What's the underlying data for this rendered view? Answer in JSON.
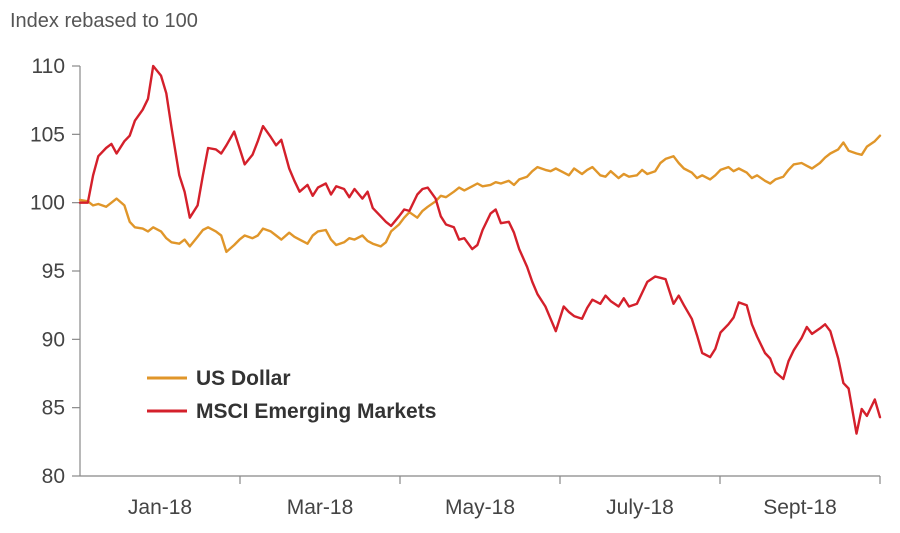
{
  "chart_data": {
    "type": "line",
    "title": "",
    "ylabel": "Index rebased to 100",
    "xlabel": "",
    "ylim": [
      80,
      110
    ],
    "yticks": [
      80,
      85,
      90,
      95,
      100,
      105,
      110
    ],
    "xticks": [
      "Jan-18",
      "Mar-18",
      "May-18",
      "July-18",
      "Sept-18"
    ],
    "x_range": [
      "2017-12-29",
      "2018-10-31"
    ],
    "grid": false,
    "legend_position": "bottom-left",
    "series": [
      {
        "name": "US Dollar",
        "color": "#E0962A",
        "points": [
          [
            "2017-12-29",
            100.2
          ],
          [
            "2018-01-01",
            100.1
          ],
          [
            "2018-01-03",
            99.8
          ],
          [
            "2018-01-05",
            99.9
          ],
          [
            "2018-01-08",
            99.7
          ],
          [
            "2018-01-10",
            100.0
          ],
          [
            "2018-01-12",
            100.3
          ],
          [
            "2018-01-15",
            99.8
          ],
          [
            "2018-01-17",
            98.6
          ],
          [
            "2018-01-19",
            98.2
          ],
          [
            "2018-01-22",
            98.1
          ],
          [
            "2018-01-24",
            97.9
          ],
          [
            "2018-01-26",
            98.2
          ],
          [
            "2018-01-29",
            97.9
          ],
          [
            "2018-01-31",
            97.4
          ],
          [
            "2018-02-02",
            97.1
          ],
          [
            "2018-02-05",
            97.0
          ],
          [
            "2018-02-07",
            97.3
          ],
          [
            "2018-02-09",
            96.8
          ],
          [
            "2018-02-12",
            97.5
          ],
          [
            "2018-02-14",
            98.0
          ],
          [
            "2018-02-16",
            98.2
          ],
          [
            "2018-02-19",
            97.9
          ],
          [
            "2018-02-21",
            97.6
          ],
          [
            "2018-02-23",
            96.4
          ],
          [
            "2018-02-26",
            96.9
          ],
          [
            "2018-02-28",
            97.3
          ],
          [
            "2018-03-02",
            97.6
          ],
          [
            "2018-03-05",
            97.4
          ],
          [
            "2018-03-07",
            97.6
          ],
          [
            "2018-03-09",
            98.1
          ],
          [
            "2018-03-12",
            97.9
          ],
          [
            "2018-03-14",
            97.6
          ],
          [
            "2018-03-16",
            97.3
          ],
          [
            "2018-03-19",
            97.8
          ],
          [
            "2018-03-21",
            97.5
          ],
          [
            "2018-03-23",
            97.3
          ],
          [
            "2018-03-26",
            97.0
          ],
          [
            "2018-03-28",
            97.6
          ],
          [
            "2018-03-30",
            97.9
          ],
          [
            "2018-04-02",
            98.0
          ],
          [
            "2018-04-04",
            97.3
          ],
          [
            "2018-04-06",
            96.9
          ],
          [
            "2018-04-09",
            97.1
          ],
          [
            "2018-04-11",
            97.4
          ],
          [
            "2018-04-13",
            97.3
          ],
          [
            "2018-04-16",
            97.6
          ],
          [
            "2018-04-18",
            97.2
          ],
          [
            "2018-04-20",
            97.0
          ],
          [
            "2018-04-23",
            96.8
          ],
          [
            "2018-04-25",
            97.1
          ],
          [
            "2018-04-27",
            97.9
          ],
          [
            "2018-04-30",
            98.4
          ],
          [
            "2018-05-02",
            98.9
          ],
          [
            "2018-05-04",
            99.3
          ],
          [
            "2018-05-07",
            98.9
          ],
          [
            "2018-05-09",
            99.4
          ],
          [
            "2018-05-11",
            99.7
          ],
          [
            "2018-05-14",
            100.1
          ],
          [
            "2018-05-16",
            100.5
          ],
          [
            "2018-05-18",
            100.4
          ],
          [
            "2018-05-21",
            100.8
          ],
          [
            "2018-05-23",
            101.1
          ],
          [
            "2018-05-25",
            100.9
          ],
          [
            "2018-05-28",
            101.2
          ],
          [
            "2018-05-30",
            101.4
          ],
          [
            "2018-06-01",
            101.2
          ],
          [
            "2018-06-04",
            101.3
          ],
          [
            "2018-06-06",
            101.5
          ],
          [
            "2018-06-08",
            101.4
          ],
          [
            "2018-06-11",
            101.6
          ],
          [
            "2018-06-13",
            101.3
          ],
          [
            "2018-06-15",
            101.7
          ],
          [
            "2018-06-18",
            101.9
          ],
          [
            "2018-06-20",
            102.3
          ],
          [
            "2018-06-22",
            102.6
          ],
          [
            "2018-06-25",
            102.4
          ],
          [
            "2018-06-27",
            102.3
          ],
          [
            "2018-06-29",
            102.5
          ],
          [
            "2018-07-02",
            102.2
          ],
          [
            "2018-07-04",
            102.0
          ],
          [
            "2018-07-06",
            102.5
          ],
          [
            "2018-07-09",
            102.1
          ],
          [
            "2018-07-11",
            102.4
          ],
          [
            "2018-07-13",
            102.6
          ],
          [
            "2018-07-16",
            102.0
          ],
          [
            "2018-07-18",
            101.9
          ],
          [
            "2018-07-20",
            102.3
          ],
          [
            "2018-07-23",
            101.8
          ],
          [
            "2018-07-25",
            102.1
          ],
          [
            "2018-07-27",
            101.9
          ],
          [
            "2018-07-30",
            102.0
          ],
          [
            "2018-08-01",
            102.4
          ],
          [
            "2018-08-03",
            102.1
          ],
          [
            "2018-08-06",
            102.3
          ],
          [
            "2018-08-08",
            102.9
          ],
          [
            "2018-08-10",
            103.2
          ],
          [
            "2018-08-13",
            103.4
          ],
          [
            "2018-08-15",
            102.9
          ],
          [
            "2018-08-17",
            102.5
          ],
          [
            "2018-08-20",
            102.2
          ],
          [
            "2018-08-22",
            101.8
          ],
          [
            "2018-08-24",
            102.0
          ],
          [
            "2018-08-27",
            101.7
          ],
          [
            "2018-08-29",
            102.0
          ],
          [
            "2018-08-31",
            102.4
          ],
          [
            "2018-09-03",
            102.6
          ],
          [
            "2018-09-05",
            102.3
          ],
          [
            "2018-09-07",
            102.5
          ],
          [
            "2018-09-10",
            102.2
          ],
          [
            "2018-09-12",
            101.8
          ],
          [
            "2018-09-14",
            102.0
          ],
          [
            "2018-09-17",
            101.6
          ],
          [
            "2018-09-19",
            101.4
          ],
          [
            "2018-09-21",
            101.7
          ],
          [
            "2018-09-24",
            101.9
          ],
          [
            "2018-09-26",
            102.4
          ],
          [
            "2018-09-28",
            102.8
          ],
          [
            "2018-10-01",
            102.9
          ],
          [
            "2018-10-03",
            102.7
          ],
          [
            "2018-10-05",
            102.5
          ],
          [
            "2018-10-08",
            102.9
          ],
          [
            "2018-10-10",
            103.3
          ],
          [
            "2018-10-12",
            103.6
          ],
          [
            "2018-10-15",
            103.9
          ],
          [
            "2018-10-17",
            104.4
          ],
          [
            "2018-10-19",
            103.8
          ],
          [
            "2018-10-22",
            103.6
          ],
          [
            "2018-10-24",
            103.5
          ],
          [
            "2018-10-26",
            104.1
          ],
          [
            "2018-10-29",
            104.5
          ],
          [
            "2018-10-31",
            104.9
          ]
        ]
      },
      {
        "name": "MSCI Emerging Markets",
        "color": "#D4202B",
        "points": [
          [
            "2017-12-29",
            100.0
          ],
          [
            "2018-01-01",
            100.0
          ],
          [
            "2018-01-03",
            102.0
          ],
          [
            "2018-01-05",
            103.4
          ],
          [
            "2018-01-08",
            104.0
          ],
          [
            "2018-01-10",
            104.3
          ],
          [
            "2018-01-12",
            103.6
          ],
          [
            "2018-01-15",
            104.5
          ],
          [
            "2018-01-17",
            104.9
          ],
          [
            "2018-01-19",
            106.0
          ],
          [
            "2018-01-22",
            106.8
          ],
          [
            "2018-01-24",
            107.6
          ],
          [
            "2018-01-26",
            110.0
          ],
          [
            "2018-01-29",
            109.3
          ],
          [
            "2018-01-31",
            108.0
          ],
          [
            "2018-02-02",
            105.5
          ],
          [
            "2018-02-05",
            102.0
          ],
          [
            "2018-02-07",
            100.8
          ],
          [
            "2018-02-09",
            98.9
          ],
          [
            "2018-02-12",
            99.8
          ],
          [
            "2018-02-14",
            102.0
          ],
          [
            "2018-02-16",
            104.0
          ],
          [
            "2018-02-19",
            103.9
          ],
          [
            "2018-02-21",
            103.6
          ],
          [
            "2018-02-23",
            104.2
          ],
          [
            "2018-02-26",
            105.2
          ],
          [
            "2018-02-28",
            104.0
          ],
          [
            "2018-03-02",
            102.8
          ],
          [
            "2018-03-05",
            103.5
          ],
          [
            "2018-03-07",
            104.5
          ],
          [
            "2018-03-09",
            105.6
          ],
          [
            "2018-03-12",
            104.8
          ],
          [
            "2018-03-14",
            104.2
          ],
          [
            "2018-03-16",
            104.6
          ],
          [
            "2018-03-19",
            102.5
          ],
          [
            "2018-03-21",
            101.6
          ],
          [
            "2018-03-23",
            100.8
          ],
          [
            "2018-03-26",
            101.3
          ],
          [
            "2018-03-28",
            100.5
          ],
          [
            "2018-03-30",
            101.1
          ],
          [
            "2018-04-02",
            101.4
          ],
          [
            "2018-04-04",
            100.6
          ],
          [
            "2018-04-06",
            101.2
          ],
          [
            "2018-04-09",
            101.0
          ],
          [
            "2018-04-11",
            100.4
          ],
          [
            "2018-04-13",
            101.0
          ],
          [
            "2018-04-16",
            100.3
          ],
          [
            "2018-04-18",
            100.8
          ],
          [
            "2018-04-20",
            99.6
          ],
          [
            "2018-04-23",
            99.0
          ],
          [
            "2018-04-25",
            98.6
          ],
          [
            "2018-04-27",
            98.3
          ],
          [
            "2018-04-30",
            99.0
          ],
          [
            "2018-05-02",
            99.5
          ],
          [
            "2018-05-04",
            99.4
          ],
          [
            "2018-05-07",
            100.6
          ],
          [
            "2018-05-09",
            101.0
          ],
          [
            "2018-05-11",
            101.1
          ],
          [
            "2018-05-14",
            100.3
          ],
          [
            "2018-05-16",
            99.0
          ],
          [
            "2018-05-18",
            98.4
          ],
          [
            "2018-05-21",
            98.2
          ],
          [
            "2018-05-23",
            97.3
          ],
          [
            "2018-05-25",
            97.4
          ],
          [
            "2018-05-28",
            96.6
          ],
          [
            "2018-05-30",
            96.9
          ],
          [
            "2018-06-01",
            98.0
          ],
          [
            "2018-06-04",
            99.2
          ],
          [
            "2018-06-06",
            99.5
          ],
          [
            "2018-06-08",
            98.5
          ],
          [
            "2018-06-11",
            98.6
          ],
          [
            "2018-06-13",
            97.8
          ],
          [
            "2018-06-15",
            96.6
          ],
          [
            "2018-06-18",
            95.3
          ],
          [
            "2018-06-20",
            94.2
          ],
          [
            "2018-06-22",
            93.3
          ],
          [
            "2018-06-25",
            92.4
          ],
          [
            "2018-06-27",
            91.5
          ],
          [
            "2018-06-29",
            90.6
          ],
          [
            "2018-07-02",
            92.4
          ],
          [
            "2018-07-04",
            92.0
          ],
          [
            "2018-07-06",
            91.7
          ],
          [
            "2018-07-09",
            91.5
          ],
          [
            "2018-07-11",
            92.3
          ],
          [
            "2018-07-13",
            92.9
          ],
          [
            "2018-07-16",
            92.6
          ],
          [
            "2018-07-18",
            93.2
          ],
          [
            "2018-07-20",
            92.8
          ],
          [
            "2018-07-23",
            92.4
          ],
          [
            "2018-07-25",
            93.0
          ],
          [
            "2018-07-27",
            92.4
          ],
          [
            "2018-07-30",
            92.6
          ],
          [
            "2018-08-01",
            93.4
          ],
          [
            "2018-08-03",
            94.2
          ],
          [
            "2018-08-06",
            94.6
          ],
          [
            "2018-08-08",
            94.5
          ],
          [
            "2018-08-10",
            94.4
          ],
          [
            "2018-08-13",
            92.6
          ],
          [
            "2018-08-15",
            93.2
          ],
          [
            "2018-08-17",
            92.5
          ],
          [
            "2018-08-20",
            91.5
          ],
          [
            "2018-08-22",
            90.3
          ],
          [
            "2018-08-24",
            89.0
          ],
          [
            "2018-08-27",
            88.7
          ],
          [
            "2018-08-29",
            89.3
          ],
          [
            "2018-08-31",
            90.5
          ],
          [
            "2018-09-03",
            91.1
          ],
          [
            "2018-09-05",
            91.6
          ],
          [
            "2018-09-07",
            92.7
          ],
          [
            "2018-09-10",
            92.5
          ],
          [
            "2018-09-12",
            91.1
          ],
          [
            "2018-09-14",
            90.2
          ],
          [
            "2018-09-17",
            89.0
          ],
          [
            "2018-09-19",
            88.6
          ],
          [
            "2018-09-21",
            87.6
          ],
          [
            "2018-09-24",
            87.1
          ],
          [
            "2018-09-26",
            88.4
          ],
          [
            "2018-09-28",
            89.2
          ],
          [
            "2018-10-01",
            90.1
          ],
          [
            "2018-10-03",
            90.9
          ],
          [
            "2018-10-05",
            90.4
          ],
          [
            "2018-10-08",
            90.8
          ],
          [
            "2018-10-10",
            91.1
          ],
          [
            "2018-10-12",
            90.6
          ],
          [
            "2018-10-15",
            88.6
          ],
          [
            "2018-10-17",
            86.8
          ],
          [
            "2018-10-19",
            86.4
          ],
          [
            "2018-10-22",
            83.1
          ],
          [
            "2018-10-24",
            84.9
          ],
          [
            "2018-10-26",
            84.4
          ],
          [
            "2018-10-29",
            85.6
          ],
          [
            "2018-10-31",
            84.3
          ]
        ]
      }
    ]
  }
}
